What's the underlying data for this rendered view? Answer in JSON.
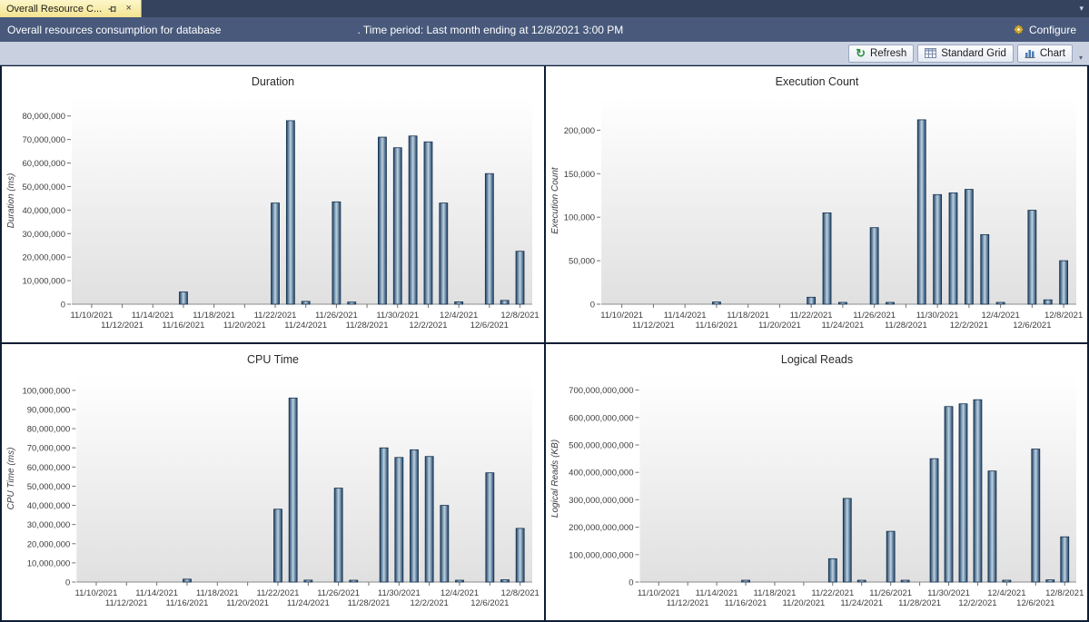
{
  "window": {
    "tab_title": "Overall Resource C...",
    "tab_overflow_icon": "▾"
  },
  "header": {
    "title_left": "Overall resources consumption for database",
    "database_name": "",
    "title_right": ". Time period: Last month ending at 12/8/2021 3:00 PM",
    "configure_label": "Configure"
  },
  "toolbar": {
    "refresh_label": "Refresh",
    "standard_grid_label": "Standard Grid",
    "chart_label": "Chart",
    "overflow_icon": "▾"
  },
  "icons": {
    "close": "×",
    "refresh": "↻"
  },
  "colors": {
    "bar_edge": "#1f4265",
    "bar_center": "#bdd2e2",
    "bar_stroke": "#14314f",
    "plot_bg_top": "#ffffff",
    "plot_bg_bottom": "#e0e0e0",
    "header_bg": "#48597b",
    "tab_bg": "#f6e99d"
  },
  "chart_data": [
    {
      "id": "duration",
      "type": "bar",
      "title": "Duration",
      "xlabel": "",
      "ylabel": "Duration (ms)",
      "y_tick_step": 10000000,
      "y_tick_max": 80000000,
      "ylim": [
        0,
        88000000
      ],
      "x_tick_step_days": 2,
      "x_domain_days": [
        -1.3,
        28.8
      ],
      "x_tick_labels": [
        "11/10/2021",
        "11/12/2021",
        "11/14/2021",
        "11/16/2021",
        "11/18/2021",
        "11/20/2021",
        "11/22/2021",
        "11/24/2021",
        "11/26/2021",
        "11/28/2021",
        "11/30/2021",
        "12/2/2021",
        "12/4/2021",
        "12/6/2021",
        "12/8/2021"
      ],
      "bars": [
        {
          "date": "11/16/2021",
          "value": 5200000
        },
        {
          "date": "11/22/2021",
          "value": 43000000
        },
        {
          "date": "11/23/2021",
          "value": 78000000
        },
        {
          "date": "11/24/2021",
          "value": 1200000
        },
        {
          "date": "11/26/2021",
          "value": 43500000
        },
        {
          "date": "11/27/2021",
          "value": 900000
        },
        {
          "date": "11/29/2021",
          "value": 71000000
        },
        {
          "date": "11/30/2021",
          "value": 66500000
        },
        {
          "date": "12/1/2021",
          "value": 71500000
        },
        {
          "date": "12/2/2021",
          "value": 69000000
        },
        {
          "date": "12/3/2021",
          "value": 43000000
        },
        {
          "date": "12/4/2021",
          "value": 1000000
        },
        {
          "date": "12/6/2021",
          "value": 55500000
        },
        {
          "date": "12/7/2021",
          "value": 1600000
        },
        {
          "date": "12/8/2021",
          "value": 22500000
        }
      ]
    },
    {
      "id": "execution_count",
      "type": "bar",
      "title": "Execution Count",
      "xlabel": "",
      "ylabel": "Execution Count",
      "y_tick_step": 50000,
      "y_tick_max": 200000,
      "ylim": [
        0,
        238000
      ],
      "x_tick_step_days": 2,
      "x_domain_days": [
        -1.3,
        28.8
      ],
      "x_tick_labels": [
        "11/10/2021",
        "11/12/2021",
        "11/14/2021",
        "11/16/2021",
        "11/18/2021",
        "11/20/2021",
        "11/22/2021",
        "11/24/2021",
        "11/26/2021",
        "11/28/2021",
        "11/30/2021",
        "12/2/2021",
        "12/4/2021",
        "12/6/2021",
        "12/8/2021"
      ],
      "bars": [
        {
          "date": "11/16/2021",
          "value": 2500
        },
        {
          "date": "11/22/2021",
          "value": 8000
        },
        {
          "date": "11/23/2021",
          "value": 105000
        },
        {
          "date": "11/24/2021",
          "value": 2000
        },
        {
          "date": "11/26/2021",
          "value": 88000
        },
        {
          "date": "11/27/2021",
          "value": 1500
        },
        {
          "date": "11/29/2021",
          "value": 212000
        },
        {
          "date": "11/30/2021",
          "value": 126000
        },
        {
          "date": "12/1/2021",
          "value": 128000
        },
        {
          "date": "12/2/2021",
          "value": 132000
        },
        {
          "date": "12/3/2021",
          "value": 80000
        },
        {
          "date": "12/4/2021",
          "value": 1500
        },
        {
          "date": "12/6/2021",
          "value": 108000
        },
        {
          "date": "12/7/2021",
          "value": 5000
        },
        {
          "date": "12/8/2021",
          "value": 50000
        }
      ]
    },
    {
      "id": "cpu_time",
      "type": "bar",
      "title": "CPU Time",
      "xlabel": "",
      "ylabel": "CPU Time (ms)",
      "y_tick_step": 10000000,
      "y_tick_max": 100000000,
      "ylim": [
        0,
        108000000
      ],
      "x_tick_step_days": 2,
      "x_domain_days": [
        -1.3,
        28.8
      ],
      "x_tick_labels": [
        "11/10/2021",
        "11/12/2021",
        "11/14/2021",
        "11/16/2021",
        "11/18/2021",
        "11/20/2021",
        "11/22/2021",
        "11/24/2021",
        "11/26/2021",
        "11/28/2021",
        "11/30/2021",
        "12/2/2021",
        "12/4/2021",
        "12/6/2021",
        "12/8/2021"
      ],
      "bars": [
        {
          "date": "11/16/2021",
          "value": 1500000
        },
        {
          "date": "11/22/2021",
          "value": 38000000
        },
        {
          "date": "11/23/2021",
          "value": 96000000
        },
        {
          "date": "11/24/2021",
          "value": 1000000
        },
        {
          "date": "11/26/2021",
          "value": 49000000
        },
        {
          "date": "11/27/2021",
          "value": 800000
        },
        {
          "date": "11/29/2021",
          "value": 70000000
        },
        {
          "date": "11/30/2021",
          "value": 65000000
        },
        {
          "date": "12/1/2021",
          "value": 69000000
        },
        {
          "date": "12/2/2021",
          "value": 65500000
        },
        {
          "date": "12/3/2021",
          "value": 40000000
        },
        {
          "date": "12/4/2021",
          "value": 900000
        },
        {
          "date": "12/6/2021",
          "value": 57000000
        },
        {
          "date": "12/7/2021",
          "value": 1200000
        },
        {
          "date": "12/8/2021",
          "value": 28000000
        }
      ]
    },
    {
      "id": "logical_reads",
      "type": "bar",
      "title": "Logical Reads",
      "xlabel": "",
      "ylabel": "Logical Reads (KB)",
      "y_tick_step": 100000000000,
      "y_tick_max": 700000000000,
      "ylim": [
        0,
        755000000000
      ],
      "x_tick_step_days": 2,
      "x_domain_days": [
        -1.3,
        28.8
      ],
      "x_tick_labels": [
        "11/10/2021",
        "11/12/2021",
        "11/14/2021",
        "11/16/2021",
        "11/18/2021",
        "11/20/2021",
        "11/22/2021",
        "11/24/2021",
        "11/26/2021",
        "11/28/2021",
        "11/30/2021",
        "12/2/2021",
        "12/4/2021",
        "12/6/2021",
        "12/8/2021"
      ],
      "bars": [
        {
          "date": "11/16/2021",
          "value": 2500000000
        },
        {
          "date": "11/22/2021",
          "value": 85000000000
        },
        {
          "date": "11/23/2021",
          "value": 305000000000
        },
        {
          "date": "11/24/2021",
          "value": 5000000000
        },
        {
          "date": "11/26/2021",
          "value": 185000000000
        },
        {
          "date": "11/27/2021",
          "value": 2000000000
        },
        {
          "date": "11/29/2021",
          "value": 450000000000
        },
        {
          "date": "11/30/2021",
          "value": 640000000000
        },
        {
          "date": "12/1/2021",
          "value": 650000000000
        },
        {
          "date": "12/2/2021",
          "value": 665000000000
        },
        {
          "date": "12/3/2021",
          "value": 405000000000
        },
        {
          "date": "12/4/2021",
          "value": 3000000000
        },
        {
          "date": "12/6/2021",
          "value": 485000000000
        },
        {
          "date": "12/7/2021",
          "value": 8000000000
        },
        {
          "date": "12/8/2021",
          "value": 165000000000
        }
      ]
    }
  ]
}
